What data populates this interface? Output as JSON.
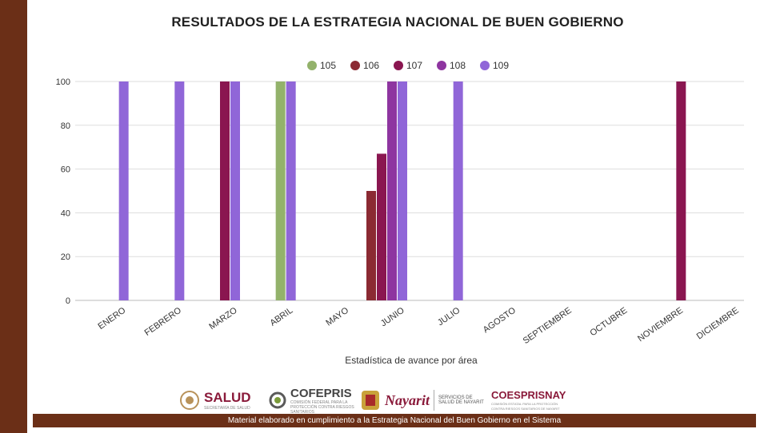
{
  "title": "RESULTADOS DE LA ESTRATEGIA NACIONAL DE BUEN GOBIERNO",
  "chart_data": {
    "type": "bar",
    "title": "RESULTADOS DE LA ESTRATEGIA NACIONAL DE BUEN GOBIERNO",
    "xlabel": "Estadística de avance por área",
    "ylabel": "",
    "ylim": [
      0,
      100
    ],
    "yticks": [
      0,
      20,
      40,
      60,
      80,
      100
    ],
    "grid": true,
    "legend_position": "top",
    "categories": [
      "ENERO",
      "FEBRERO",
      "MARZO",
      "ABRIL",
      "MAYO",
      "JUNIO",
      "JULIO",
      "AGOSTO",
      "SEPTIEMBRE",
      "OCTUBRE",
      "NOVIEMBRE",
      "DICIEMBRE"
    ],
    "series": [
      {
        "name": "105",
        "color": "#93b26b",
        "values": [
          0,
          0,
          0,
          100,
          0,
          0,
          0,
          0,
          0,
          0,
          0,
          0
        ]
      },
      {
        "name": "106",
        "color": "#8b2a33",
        "values": [
          0,
          0,
          0,
          0,
          0,
          50,
          0,
          0,
          0,
          0,
          0,
          0
        ]
      },
      {
        "name": "107",
        "color": "#8a1650",
        "values": [
          0,
          0,
          100,
          0,
          0,
          67,
          0,
          0,
          0,
          0,
          100,
          0
        ]
      },
      {
        "name": "108",
        "color": "#8e35a0",
        "values": [
          0,
          0,
          0,
          0,
          0,
          100,
          0,
          0,
          0,
          0,
          0,
          0
        ]
      },
      {
        "name": "109",
        "color": "#9066d8",
        "values": [
          100,
          100,
          100,
          100,
          0,
          100,
          100,
          0,
          0,
          0,
          0,
          0
        ]
      }
    ]
  },
  "logos": {
    "salud": {
      "name": "SALUD",
      "sub": "SECRETARÍA DE SALUD",
      "color": "#8a1a3a"
    },
    "cofepris": {
      "name": "COFEPRIS",
      "sub": "COMISIÓN FEDERAL PARA LA PROTECCIÓN CONTRA RIESGOS SANITARIOS",
      "color": "#444444"
    },
    "nayarit": {
      "name": "Nayarit",
      "sub": "SERVICIOS DE SALUD DE NAYARIT",
      "color": "#8a1a3a"
    },
    "coesprisnay": {
      "name": "COESPRISNAY",
      "sub": "COMISIÓN ESTATAL PARA LA PROTECCIÓN CONTRA RIESGOS SANITARIOS DE NAYARIT",
      "color": "#8a1a3a"
    }
  },
  "footer": "Material elaborado en cumplimiento a la Estrategia Nacional  del Buen Gobierno en el Sistema"
}
